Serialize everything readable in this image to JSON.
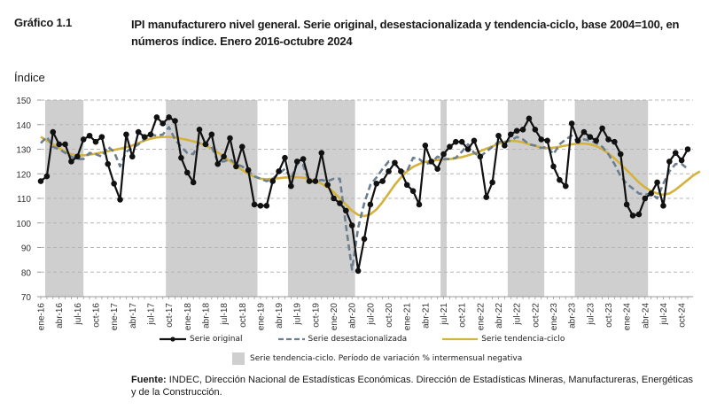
{
  "header": {
    "figure_label": "Gráfico 1.1",
    "title": "IPI manufacturero nivel general. Serie original, desestacionalizada y tendencia-ciclo, base 2004=100, en números índice. Enero 2016-octubre 2024"
  },
  "footer": {
    "source_label": "Fuente:",
    "source_text": " INDEC, Dirección Nacional de Estadísticas Económicas. Dirección de Estadísticas Mineras, Manufactureras, Energéticas y de la Construcción."
  },
  "chart_data": {
    "type": "line",
    "title": "IPI manufacturero nivel general. Serie original, desestacionalizada y tendencia-ciclo, base 2004=100, en números índice. Enero 2016-octubre 2024",
    "ylabel": "Índice",
    "xlabel": "",
    "ylim": [
      70,
      150
    ],
    "yticks": [
      70,
      80,
      90,
      100,
      110,
      120,
      130,
      140,
      150
    ],
    "grid": "horizontal-dashed",
    "legend_position": "bottom",
    "x_start": "ene-16",
    "x_end": "oct-24",
    "xtick_labels": [
      "ene-16",
      "abr-16",
      "jul-16",
      "oct-16",
      "ene-17",
      "abr-17",
      "jul-17",
      "oct-17",
      "ene-18",
      "abr-18",
      "jul-18",
      "oct-18",
      "ene-19",
      "abr-19",
      "jul-19",
      "oct-19",
      "ene-20",
      "abr-20",
      "jul-20",
      "oct-20",
      "ene-21",
      "abr-21",
      "jul-21",
      "oct-21",
      "ene-22",
      "abr-22",
      "jul-22",
      "oct-22",
      "ene-23",
      "abr-23",
      "jul-23",
      "oct-23",
      "ene-24",
      "abr-24",
      "jul-24",
      "oct-24"
    ],
    "series": [
      {
        "name": "Serie original",
        "color": "#111111",
        "style": "solid-markers",
        "values": [
          117,
          119,
          137,
          132,
          132,
          125,
          127,
          134,
          135.5,
          133,
          135,
          124,
          116,
          109.5,
          136,
          127,
          137,
          135,
          136,
          143,
          140.5,
          143,
          141.5,
          126.5,
          120.5,
          116.5,
          138,
          132,
          136,
          124,
          127,
          134.5,
          123,
          131,
          121.5,
          107.5,
          107,
          107,
          117,
          121,
          126.5,
          115,
          125,
          126,
          117,
          117,
          128.5,
          115.5,
          110,
          108,
          105,
          99,
          80.5,
          93.5,
          107.5,
          116,
          117,
          121,
          124.5,
          121,
          115.5,
          113,
          107.5,
          131.5,
          125,
          122,
          128,
          131,
          133,
          133,
          130,
          133.5,
          127,
          110.5,
          116.5,
          135.5,
          131.5,
          136,
          137.5,
          138,
          142.5,
          138,
          134,
          133.5,
          123,
          117.5,
          115,
          140.5,
          133.5,
          137,
          135,
          133.5,
          138.5,
          134,
          133,
          128,
          107.5,
          103,
          103.5,
          110,
          112,
          116.5,
          107,
          125,
          128.5,
          125.5,
          130
        ]
      },
      {
        "name": "Serie desestacionalizada",
        "color": "#6b7f91",
        "style": "dashed",
        "values": [
          132.5,
          135,
          131,
          130,
          128.5,
          127,
          126,
          126,
          128.5,
          128,
          127,
          131,
          129,
          123,
          129,
          130.5,
          132,
          134,
          136,
          135.5,
          136,
          139,
          134,
          131,
          128.5,
          128,
          133,
          132,
          131,
          125,
          125,
          126,
          124,
          123,
          121,
          119,
          118,
          117,
          118,
          120,
          122,
          118,
          124,
          123.5,
          116.5,
          117,
          117.5,
          117,
          118,
          118,
          99,
          81,
          98,
          108,
          115.5,
          118.5,
          122,
          125,
          124,
          121,
          121,
          126.5,
          126,
          124,
          124.5,
          127,
          126,
          126,
          126.5,
          129,
          132,
          128.5,
          127,
          129,
          131,
          133,
          133,
          133.5,
          135,
          134,
          132,
          131.5,
          130.5,
          131,
          128,
          132,
          134,
          135.5,
          133,
          134,
          133.5,
          132.5,
          131,
          128,
          124,
          119,
          116,
          114,
          112,
          111.5,
          112,
          110,
          116,
          121,
          124,
          124,
          122
        ]
      },
      {
        "name": "Serie tendencia-ciclo",
        "color": "#d4b23c",
        "style": "solid",
        "values": [
          135,
          133.5,
          132,
          130.5,
          129,
          128,
          127.5,
          127.5,
          127.8,
          128.2,
          128.7,
          129.2,
          129.7,
          130.2,
          130.8,
          131.5,
          132.5,
          133.5,
          134.3,
          134.8,
          135,
          135,
          134.8,
          134.3,
          133.8,
          133.2,
          132.5,
          131.5,
          130.2,
          128.7,
          127,
          125.2,
          123.3,
          121.5,
          120,
          118.8,
          118,
          117.8,
          118,
          118.2,
          118.5,
          118.6,
          118.6,
          118.4,
          118,
          117.2,
          116,
          114.5,
          112.5,
          110,
          107.5,
          105,
          103.3,
          102.8,
          103.5,
          105.5,
          108.5,
          112,
          115.5,
          118.5,
          121,
          122.8,
          124,
          124.8,
          125.3,
          125.6,
          125.8,
          126,
          126.3,
          126.8,
          127.5,
          128.3,
          129.2,
          130.2,
          131.2,
          132.2,
          133,
          133.4,
          133.3,
          132.8,
          132,
          131.3,
          130.7,
          130.5,
          130.6,
          131,
          131.5,
          132,
          132.3,
          132.3,
          132,
          131.3,
          130,
          128.3,
          126.3,
          124,
          121.5,
          119,
          116.5,
          114.5,
          113,
          112,
          111.5,
          112,
          113.5,
          115.5,
          117.5,
          119.5,
          121
        ]
      }
    ],
    "shaded_periods": {
      "label": "Serie tendencia-ciclo. Período de variación % intermensual negativa",
      "color": "#cfcfcf",
      "ranges": [
        [
          "ene-16",
          "jul-16"
        ],
        [
          "oct-17",
          "ene-19"
        ],
        [
          "jun-19",
          "jun-20"
        ],
        [
          "jul-21",
          "jul-21"
        ],
        [
          "jun-22",
          "dic-22"
        ],
        [
          "abr-23",
          "may-24"
        ]
      ],
      "ranges_index": [
        [
          0,
          7
        ],
        [
          20.5,
          35.5
        ],
        [
          40.5,
          51.5
        ],
        [
          65.5,
          66.5
        ],
        [
          76.5,
          82.5
        ],
        [
          87.5,
          99.5
        ]
      ]
    }
  },
  "legend": {
    "original": "Serie original",
    "desest": "Serie desestacionalizada",
    "tendencia": "Serie tendencia-ciclo",
    "shade": "Serie tendencia-ciclo. Período de variación % intermensual negativa"
  }
}
